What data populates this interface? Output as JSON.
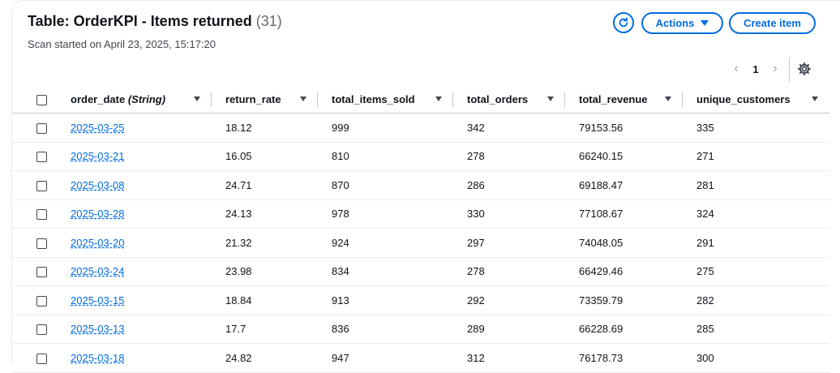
{
  "header": {
    "title": "Table: OrderKPI - Items returned",
    "count": "(31)",
    "subtitle": "Scan started on April 23, 2025, 15:17:20",
    "actions_label": "Actions",
    "create_label": "Create item"
  },
  "pagination": {
    "current_page": "1"
  },
  "columns": [
    {
      "name": "order_date",
      "type": "(String)"
    },
    {
      "name": "return_rate"
    },
    {
      "name": "total_items_sold"
    },
    {
      "name": "total_orders"
    },
    {
      "name": "total_revenue"
    },
    {
      "name": "unique_customers"
    }
  ],
  "rows": [
    [
      "2025-03-25",
      "18.12",
      "999",
      "342",
      "79153.56",
      "335"
    ],
    [
      "2025-03-21",
      "16.05",
      "810",
      "278",
      "66240.15",
      "271"
    ],
    [
      "2025-03-08",
      "24.71",
      "870",
      "286",
      "69188.47",
      "281"
    ],
    [
      "2025-03-28",
      "24.13",
      "978",
      "330",
      "77108.67",
      "324"
    ],
    [
      "2025-03-20",
      "21.32",
      "924",
      "297",
      "74048.05",
      "291"
    ],
    [
      "2025-03-24",
      "23.98",
      "834",
      "278",
      "66429.46",
      "275"
    ],
    [
      "2025-03-15",
      "18.84",
      "913",
      "292",
      "73359.79",
      "282"
    ],
    [
      "2025-03-13",
      "17.7",
      "836",
      "289",
      "66228.69",
      "285"
    ],
    [
      "2025-03-18",
      "24.82",
      "947",
      "312",
      "76178.73",
      "300"
    ]
  ],
  "colors": {
    "accent": "#006ce0",
    "text": "#0f141a",
    "muted": "#656871"
  }
}
